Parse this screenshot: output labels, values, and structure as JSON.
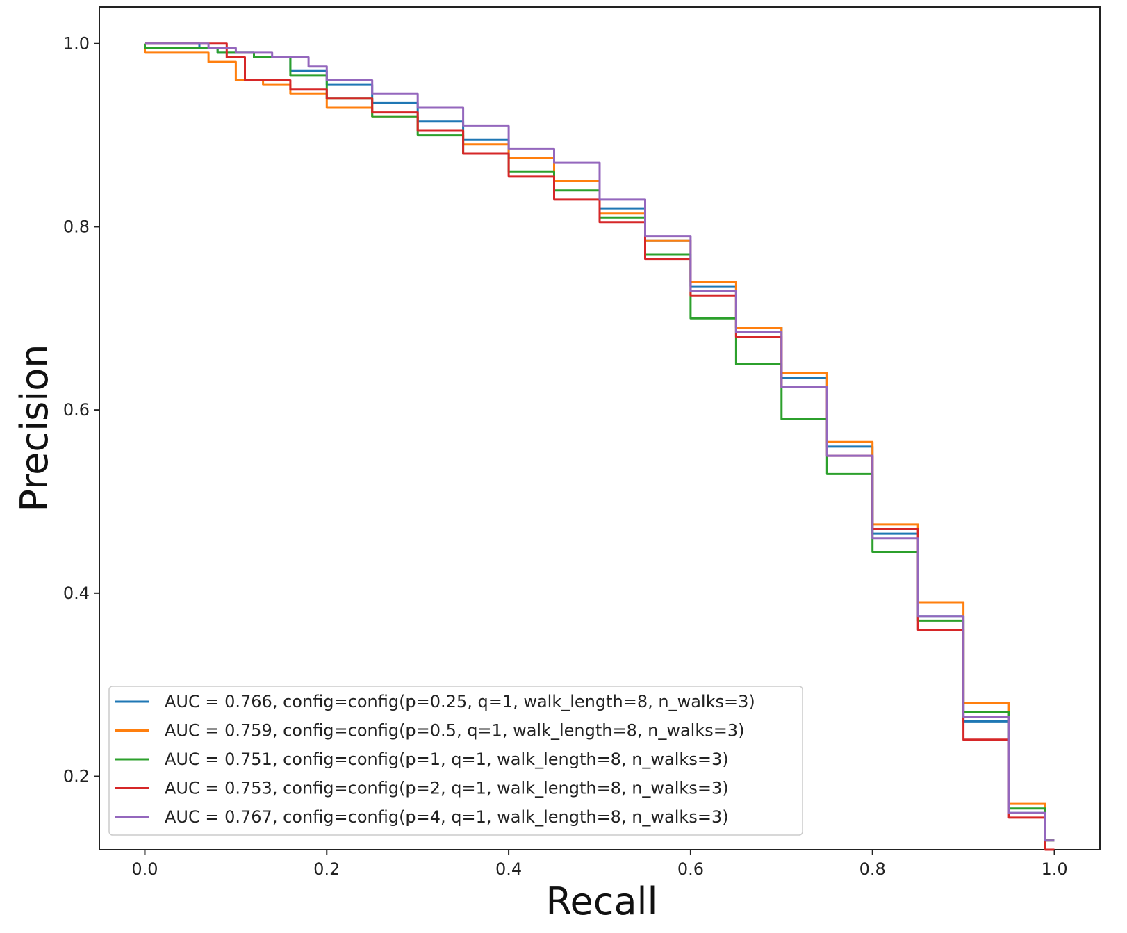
{
  "chart_data": {
    "type": "line",
    "title": "",
    "xlabel": "Recall",
    "ylabel": "Precision",
    "xlim": [
      -0.05,
      1.05
    ],
    "ylim": [
      0.12,
      1.04
    ],
    "xticks": [
      0.0,
      0.2,
      0.4,
      0.6,
      0.8,
      1.0
    ],
    "xtick_labels": [
      "0.0",
      "0.2",
      "0.4",
      "0.6",
      "0.8",
      "1.0"
    ],
    "yticks": [
      0.2,
      0.4,
      0.6,
      0.8,
      1.0
    ],
    "ytick_labels": [
      "0.2",
      "0.4",
      "0.6",
      "0.8",
      "1.0"
    ],
    "grid": false,
    "legend_position": "lower-left",
    "series": [
      {
        "name": "AUC = 0.766, config=config(p=0.25, q=1, walk_length=8, n_walks=3)",
        "color": "#1f77b4",
        "x": [
          0.0,
          0.06,
          0.08,
          0.12,
          0.16,
          0.2,
          0.25,
          0.3,
          0.35,
          0.4,
          0.45,
          0.5,
          0.55,
          0.6,
          0.65,
          0.7,
          0.75,
          0.8,
          0.85,
          0.9,
          0.95,
          0.99,
          1.0
        ],
        "y": [
          1.0,
          1.0,
          0.995,
          0.99,
          0.985,
          0.97,
          0.955,
          0.935,
          0.915,
          0.895,
          0.875,
          0.85,
          0.82,
          0.785,
          0.735,
          0.69,
          0.635,
          0.56,
          0.465,
          0.375,
          0.26,
          0.16,
          0.13
        ]
      },
      {
        "name": "AUC = 0.759, config=config(p=0.5, q=1, walk_length=8, n_walks=3)",
        "color": "#ff7f0e",
        "x": [
          0.0,
          0.07,
          0.1,
          0.13,
          0.16,
          0.2,
          0.25,
          0.3,
          0.35,
          0.4,
          0.45,
          0.5,
          0.55,
          0.6,
          0.65,
          0.7,
          0.75,
          0.8,
          0.85,
          0.9,
          0.95,
          0.99,
          1.0
        ],
        "y": [
          1.0,
          0.99,
          0.98,
          0.96,
          0.955,
          0.945,
          0.93,
          0.92,
          0.905,
          0.89,
          0.875,
          0.85,
          0.815,
          0.785,
          0.74,
          0.69,
          0.64,
          0.565,
          0.475,
          0.39,
          0.28,
          0.17,
          0.13
        ]
      },
      {
        "name": "AUC = 0.751, config=config(p=1, q=1, walk_length=8, n_walks=3)",
        "color": "#2ca02c",
        "x": [
          0.0,
          0.08,
          0.12,
          0.16,
          0.2,
          0.25,
          0.3,
          0.35,
          0.4,
          0.45,
          0.5,
          0.55,
          0.6,
          0.65,
          0.7,
          0.75,
          0.8,
          0.85,
          0.9,
          0.95,
          0.99,
          1.0
        ],
        "y": [
          1.0,
          0.995,
          0.99,
          0.985,
          0.965,
          0.94,
          0.92,
          0.9,
          0.88,
          0.86,
          0.84,
          0.81,
          0.77,
          0.7,
          0.65,
          0.59,
          0.53,
          0.445,
          0.37,
          0.27,
          0.165,
          0.13
        ]
      },
      {
        "name": "AUC = 0.753, config=config(p=2, q=1, walk_length=8, n_walks=3)",
        "color": "#d62728",
        "x": [
          0.0,
          0.09,
          0.11,
          0.14,
          0.16,
          0.2,
          0.25,
          0.3,
          0.35,
          0.4,
          0.45,
          0.5,
          0.55,
          0.6,
          0.65,
          0.7,
          0.75,
          0.8,
          0.85,
          0.9,
          0.95,
          0.99,
          1.0
        ],
        "y": [
          1.0,
          1.0,
          0.985,
          0.96,
          0.96,
          0.95,
          0.94,
          0.925,
          0.905,
          0.88,
          0.855,
          0.83,
          0.805,
          0.765,
          0.725,
          0.68,
          0.625,
          0.55,
          0.47,
          0.36,
          0.24,
          0.155,
          0.12
        ]
      },
      {
        "name": "AUC = 0.767, config=config(p=4, q=1, walk_length=8, n_walks=3)",
        "color": "#9467bd",
        "x": [
          0.0,
          0.07,
          0.1,
          0.14,
          0.18,
          0.2,
          0.25,
          0.3,
          0.35,
          0.4,
          0.45,
          0.5,
          0.55,
          0.6,
          0.65,
          0.7,
          0.75,
          0.8,
          0.85,
          0.9,
          0.95,
          0.99,
          1.0
        ],
        "y": [
          1.0,
          1.0,
          0.995,
          0.99,
          0.985,
          0.975,
          0.96,
          0.945,
          0.93,
          0.91,
          0.885,
          0.87,
          0.83,
          0.79,
          0.73,
          0.685,
          0.625,
          0.55,
          0.46,
          0.375,
          0.265,
          0.16,
          0.13
        ]
      }
    ]
  }
}
